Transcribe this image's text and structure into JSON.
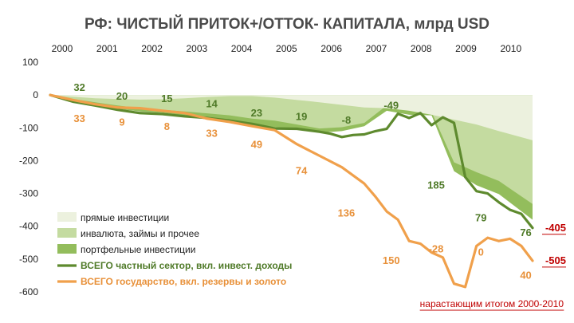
{
  "chart_data": {
    "type": "area",
    "title": "РФ: ЧИСТЫЙ ПРИТОК+/ОТТОК-  КАПИТАЛА, млрд USD",
    "xlabel": "",
    "ylabel": "",
    "note": "нарастающим итогом 2000-2010",
    "x_axis_position": "top",
    "x_ticks": [
      "2000",
      "2001",
      "2002",
      "2003",
      "2004",
      "2005",
      "2006",
      "2007",
      "2008",
      "2009",
      "2010"
    ],
    "y_ticks": [
      "100",
      "0",
      "-100",
      "-200",
      "-300",
      "-400",
      "-500",
      "-600"
    ],
    "ylim": [
      -600,
      100
    ],
    "xlim": [
      2000,
      2010.75
    ],
    "grid": false,
    "legend_position": "bottom-left",
    "colors": {
      "fdi": "#ecf1de",
      "other": "#c4dba0",
      "portfolio": "#93bd5c",
      "private": "#5e8a2e",
      "state": "#f0a04b",
      "green_label": "#4f7a28",
      "orange_label": "#e8913a",
      "red": "#c00000"
    },
    "series": [
      {
        "name": "прямые инвестиции",
        "kind": "area",
        "color_key": "fdi",
        "x": [
          2000,
          2000.5,
          2001,
          2001.5,
          2002,
          2002.5,
          2003,
          2003.5,
          2004,
          2004.5,
          2005,
          2005.5,
          2006,
          2006.5,
          2007,
          2007.5,
          2008,
          2008.5,
          2009,
          2009.5,
          2010,
          2010.75
        ],
        "values": [
          0,
          -5,
          -10,
          -12,
          -14,
          -13,
          -10,
          -6,
          -3,
          -3,
          -8,
          -15,
          -22,
          -30,
          -38,
          -40,
          -48,
          -60,
          -75,
          -90,
          -110,
          -138
        ]
      },
      {
        "name": "инвалюта, займы и прочее",
        "kind": "area",
        "color_key": "other",
        "x": [
          2000,
          2000.5,
          2001,
          2001.5,
          2002,
          2002.5,
          2003,
          2003.5,
          2004,
          2004.5,
          2005,
          2005.5,
          2006,
          2006.5,
          2007,
          2007.5,
          2008,
          2008.5,
          2009,
          2009.5,
          2010,
          2010.75
        ],
        "values": [
          0,
          -12,
          -22,
          -32,
          -40,
          -45,
          -50,
          -56,
          -62,
          -72,
          -78,
          -90,
          -102,
          -98,
          -85,
          -32,
          -45,
          -52,
          -205,
          -235,
          -262,
          -332
        ]
      },
      {
        "name": "портфельные инвестиции",
        "kind": "area",
        "color_key": "portfolio",
        "x": [
          2000,
          2000.5,
          2001,
          2001.5,
          2002,
          2002.5,
          2003,
          2003.5,
          2004,
          2004.5,
          2005,
          2005.5,
          2006,
          2006.5,
          2007,
          2007.5,
          2008,
          2008.5,
          2009,
          2009.5,
          2010,
          2010.75
        ],
        "values": [
          0,
          -15,
          -30,
          -42,
          -50,
          -54,
          -62,
          -67,
          -76,
          -88,
          -98,
          -105,
          -115,
          -110,
          -95,
          -48,
          -60,
          -62,
          -232,
          -275,
          -302,
          -380
        ]
      },
      {
        "name": "ВСЕГО частный сектор, вкл. инвест. доходы",
        "kind": "line",
        "color_key": "private",
        "x": [
          2000,
          2000.5,
          2001,
          2001.5,
          2002,
          2002.5,
          2003,
          2003.5,
          2004,
          2004.5,
          2005,
          2005.5,
          2006,
          2006.25,
          2006.5,
          2006.75,
          2007,
          2007.25,
          2007.5,
          2007.75,
          2008,
          2008.25,
          2008.5,
          2008.75,
          2009,
          2009.25,
          2009.5,
          2009.75,
          2010,
          2010.25,
          2010.5,
          2010.75
        ],
        "values": [
          0,
          -20,
          -32,
          -45,
          -55,
          -58,
          -65,
          -70,
          -78,
          -88,
          -102,
          -103,
          -112,
          -118,
          -128,
          -122,
          -120,
          -110,
          -103,
          -57,
          -70,
          -55,
          -92,
          -68,
          -85,
          -250,
          -293,
          -300,
          -327,
          -350,
          -362,
          -405
        ]
      },
      {
        "name": "ВСЕГО государство, вкл. резервы и золото",
        "kind": "line",
        "color_key": "state",
        "x": [
          2000,
          2000.5,
          2001,
          2001.5,
          2002,
          2002.5,
          2003,
          2003.5,
          2004,
          2004.5,
          2005,
          2005.5,
          2006,
          2006.5,
          2007,
          2007.25,
          2007.5,
          2007.75,
          2008,
          2008.25,
          2008.5,
          2008.75,
          2009,
          2009.25,
          2009.5,
          2009.75,
          2010,
          2010.25,
          2010.5,
          2010.75
        ],
        "values": [
          0,
          -15,
          -28,
          -38,
          -40,
          -48,
          -55,
          -72,
          -82,
          -95,
          -107,
          -150,
          -185,
          -220,
          -270,
          -310,
          -355,
          -380,
          -445,
          -453,
          -480,
          -495,
          -575,
          -585,
          -460,
          -435,
          -445,
          -438,
          -460,
          -505
        ]
      }
    ],
    "annotations": [
      {
        "text": "32",
        "x": 2000.65,
        "y": 22,
        "color_key": "green_label"
      },
      {
        "text": "33",
        "x": 2000.65,
        "y": -72,
        "color_key": "orange_label"
      },
      {
        "text": "20",
        "x": 2001.6,
        "y": -5,
        "color_key": "green_label"
      },
      {
        "text": "9",
        "x": 2001.6,
        "y": -83,
        "color_key": "orange_label"
      },
      {
        "text": "15",
        "x": 2002.6,
        "y": -12,
        "color_key": "green_label"
      },
      {
        "text": "8",
        "x": 2002.6,
        "y": -97,
        "color_key": "orange_label"
      },
      {
        "text": "14",
        "x": 2003.6,
        "y": -28,
        "color_key": "green_label"
      },
      {
        "text": "33",
        "x": 2003.6,
        "y": -118,
        "color_key": "orange_label"
      },
      {
        "text": "23",
        "x": 2004.6,
        "y": -56,
        "color_key": "green_label"
      },
      {
        "text": "49",
        "x": 2004.6,
        "y": -152,
        "color_key": "orange_label"
      },
      {
        "text": "19",
        "x": 2005.6,
        "y": -67,
        "color_key": "green_label"
      },
      {
        "text": "74",
        "x": 2005.6,
        "y": -232,
        "color_key": "orange_label"
      },
      {
        "text": "-8",
        "x": 2006.6,
        "y": -77,
        "color_key": "green_label"
      },
      {
        "text": "136",
        "x": 2006.6,
        "y": -360,
        "color_key": "orange_label"
      },
      {
        "text": "-49",
        "x": 2007.6,
        "y": -32,
        "color_key": "green_label"
      },
      {
        "text": "150",
        "x": 2007.6,
        "y": -505,
        "color_key": "orange_label"
      },
      {
        "text": "185",
        "x": 2008.6,
        "y": -275,
        "color_key": "green_label"
      },
      {
        "text": "-28",
        "x": 2008.6,
        "y": -470,
        "color_key": "orange_label"
      },
      {
        "text": "79",
        "x": 2009.6,
        "y": -375,
        "color_key": "green_label"
      },
      {
        "text": "0",
        "x": 2009.6,
        "y": -480,
        "color_key": "orange_label"
      },
      {
        "text": "76",
        "x": 2010.6,
        "y": -420,
        "color_key": "green_label"
      },
      {
        "text": "40",
        "x": 2010.6,
        "y": -550,
        "color_key": "orange_label"
      }
    ],
    "end_labels": [
      {
        "text": "-405",
        "value": -405
      },
      {
        "text": "-505",
        "value": -505
      }
    ]
  }
}
